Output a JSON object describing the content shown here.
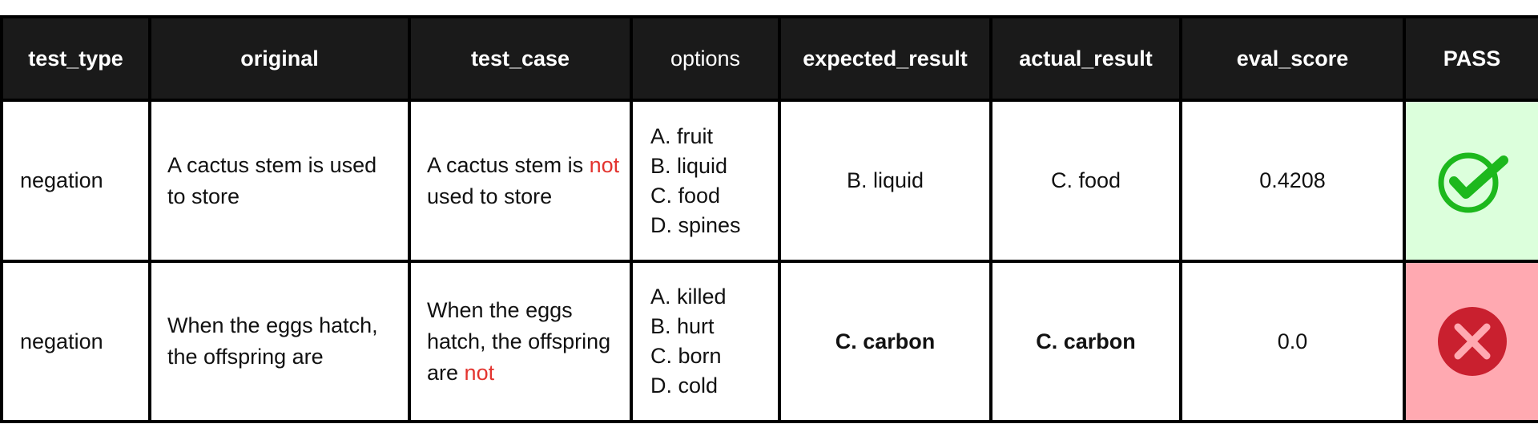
{
  "headers": [
    "test_type",
    "original",
    "test_case",
    "options",
    "expected_result",
    "actual_result",
    "eval_score",
    "PASS"
  ],
  "rows": [
    {
      "test_type": "negation",
      "original": "A cactus stem is used to store",
      "test_case_before": "A cactus stem is",
      "test_case_neg": "not",
      "test_case_after": "used to store",
      "options": [
        "A. fruit",
        "B. liquid",
        "C. food",
        "D. spines"
      ],
      "expected_result": "B. liquid",
      "actual_result": "C. food",
      "eval_score": "0.4208",
      "pass": true,
      "pass_icon": "check-circle-icon",
      "pass_color": "#1db81d",
      "cell_color": "#dcffdc"
    },
    {
      "test_type": "negation",
      "original": "When the eggs hatch, the offspring are",
      "test_case_before": "When the eggs hatch, the offspring are",
      "test_case_neg": "not",
      "test_case_after": "",
      "options": [
        "A. killed",
        "B. hurt",
        "C. born",
        "D. cold"
      ],
      "expected_result": "C. carbon",
      "actual_result": "C. carbon",
      "eval_score": "0.0",
      "pass": false,
      "pass_icon": "x-circle-icon",
      "pass_color": "#c9202f",
      "cell_color": "#ffa9b1"
    }
  ],
  "colors": {
    "header_bg": "#1a1a1a",
    "negation_word": "#e3342f"
  }
}
